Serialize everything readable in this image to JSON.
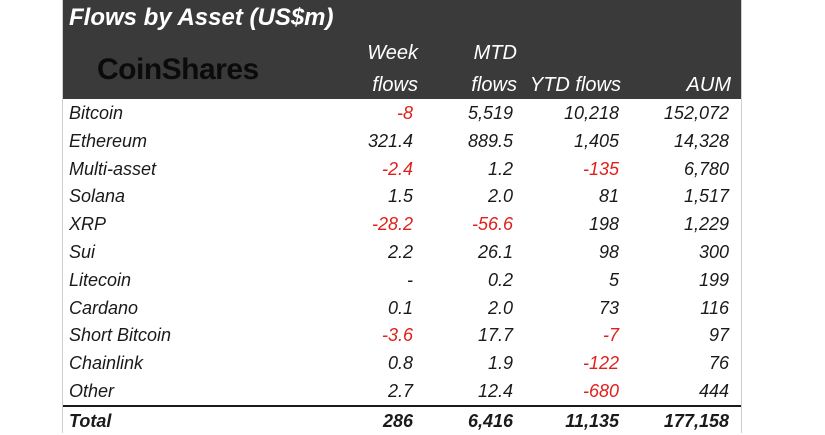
{
  "title": "Flows by Asset (US$m)",
  "logo_text": "CoinShares",
  "headers": {
    "week": [
      "Week",
      "flows"
    ],
    "mtd": [
      "MTD",
      "flows"
    ],
    "ytd": "YTD flows",
    "aum": "AUM"
  },
  "rows": [
    {
      "name": "Bitcoin",
      "week": "-8",
      "mtd": "5,519",
      "ytd": "10,218",
      "aum": "152,072"
    },
    {
      "name": "Ethereum",
      "week": "321.4",
      "mtd": "889.5",
      "ytd": "1,405",
      "aum": "14,328"
    },
    {
      "name": "Multi-asset",
      "week": "-2.4",
      "mtd": "1.2",
      "ytd": "-135",
      "aum": "6,780"
    },
    {
      "name": "Solana",
      "week": "1.5",
      "mtd": "2.0",
      "ytd": "81",
      "aum": "1,517"
    },
    {
      "name": "XRP",
      "week": "-28.2",
      "mtd": "-56.6",
      "ytd": "198",
      "aum": "1,229"
    },
    {
      "name": "Sui",
      "week": "2.2",
      "mtd": "26.1",
      "ytd": "98",
      "aum": "300"
    },
    {
      "name": "Litecoin",
      "week": "-",
      "mtd": "0.2",
      "ytd": "5",
      "aum": "199"
    },
    {
      "name": "Cardano",
      "week": "0.1",
      "mtd": "2.0",
      "ytd": "73",
      "aum": "116"
    },
    {
      "name": "Short Bitcoin",
      "week": "-3.6",
      "mtd": "17.7",
      "ytd": "-7",
      "aum": "97"
    },
    {
      "name": "Chainlink",
      "week": "0.8",
      "mtd": "1.9",
      "ytd": "-122",
      "aum": "76"
    },
    {
      "name": "Other",
      "week": "2.7",
      "mtd": "12.4",
      "ytd": "-680",
      "aum": "444"
    }
  ],
  "total": {
    "name": "Total",
    "week": "286",
    "mtd": "6,416",
    "ytd": "11,135",
    "aum": "177,158"
  },
  "colors": {
    "header_bg": "#3a3a3a",
    "negative": "#e0201b"
  }
}
